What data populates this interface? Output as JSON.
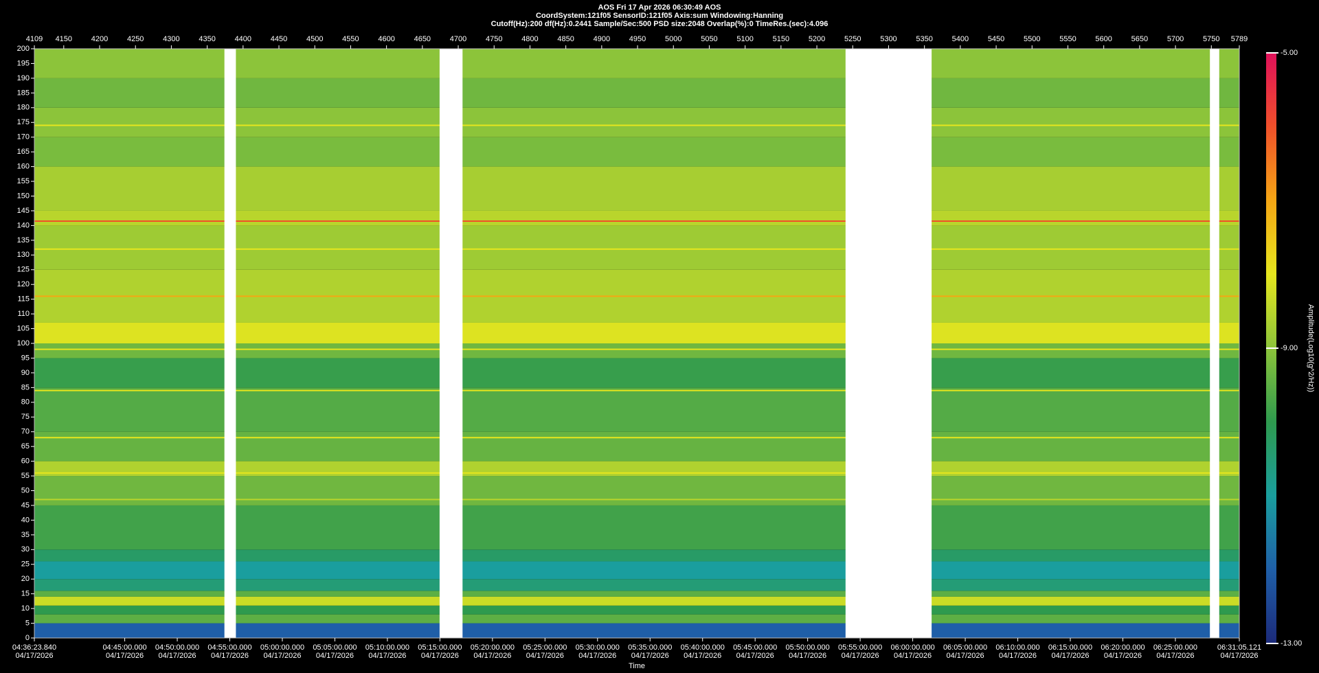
{
  "chart_data": {
    "type": "heatmap",
    "title": "AOS  Fri 17 Apr 2026 06:30:49  AOS",
    "subtitles": [
      "CoordSystem:121f05   SensorID:121f05   Axis:sum    Windowing:Hanning",
      "Cutoff(Hz):200     df(Hz):0.2441     Sample/Sec:500     PSD size:2048     Overlap(%):0     TimeRes.(sec):4.096"
    ],
    "x_label": "Time",
    "colorbar_label": "Amplitude(Log10(g^2/Hz))",
    "ylim": [
      0,
      200
    ],
    "yticks": [
      0,
      5,
      10,
      15,
      20,
      25,
      30,
      35,
      40,
      45,
      50,
      55,
      60,
      65,
      70,
      75,
      80,
      85,
      90,
      95,
      100,
      105,
      110,
      115,
      120,
      125,
      130,
      135,
      140,
      145,
      150,
      155,
      160,
      165,
      170,
      175,
      180,
      185,
      190,
      195,
      200
    ],
    "x2lim": [
      4109,
      5789
    ],
    "x2ticks": [
      4109,
      4150,
      4200,
      4250,
      4300,
      4350,
      4400,
      4450,
      4500,
      4550,
      4600,
      4650,
      4700,
      4750,
      4800,
      4850,
      4900,
      4950,
      5000,
      5050,
      5100,
      5150,
      5200,
      5250,
      5300,
      5350,
      5400,
      5450,
      5500,
      5550,
      5600,
      5650,
      5700,
      5750,
      5789
    ],
    "xlim": [
      "04:36:23.840",
      "06:31:05.121"
    ],
    "xticks": [
      {
        "time": "04:36:23.840",
        "date": "04/17/2026"
      },
      {
        "time": "04:45:00.000",
        "date": "04/17/2026"
      },
      {
        "time": "04:50:00.000",
        "date": "04/17/2026"
      },
      {
        "time": "04:55:00.000",
        "date": "04/17/2026"
      },
      {
        "time": "05:00:00.000",
        "date": "04/17/2026"
      },
      {
        "time": "05:05:00.000",
        "date": "04/17/2026"
      },
      {
        "time": "05:10:00.000",
        "date": "04/17/2026"
      },
      {
        "time": "05:15:00.000",
        "date": "04/17/2026"
      },
      {
        "time": "05:20:00.000",
        "date": "04/17/2026"
      },
      {
        "time": "05:25:00.000",
        "date": "04/17/2026"
      },
      {
        "time": "05:30:00.000",
        "date": "04/17/2026"
      },
      {
        "time": "05:35:00.000",
        "date": "04/17/2026"
      },
      {
        "time": "05:40:00.000",
        "date": "04/17/2026"
      },
      {
        "time": "05:45:00.000",
        "date": "04/17/2026"
      },
      {
        "time": "05:50:00.000",
        "date": "04/17/2026"
      },
      {
        "time": "05:55:00.000",
        "date": "04/17/2026"
      },
      {
        "time": "06:00:00.000",
        "date": "04/17/2026"
      },
      {
        "time": "06:05:00.000",
        "date": "04/17/2026"
      },
      {
        "time": "06:10:00.000",
        "date": "04/17/2026"
      },
      {
        "time": "06:15:00.000",
        "date": "04/17/2026"
      },
      {
        "time": "06:20:00.000",
        "date": "04/17/2026"
      },
      {
        "time": "06:25:00.000",
        "date": "04/17/2026"
      },
      {
        "time": "06:31:05.121",
        "date": "04/17/2026"
      }
    ],
    "clim": [
      -13,
      -5
    ],
    "cticks": [
      {
        "value": -5,
        "label": "-5.00"
      },
      {
        "value": -9,
        "label": "-9.00"
      },
      {
        "value": -13,
        "label": "-13.00"
      }
    ],
    "colormap": [
      "#1c2a7a",
      "#1f5fa8",
      "#1a9e9e",
      "#2e9a4e",
      "#8cc43a",
      "#e6e61e",
      "#f5a614",
      "#f0502a",
      "#e0105a"
    ],
    "bands": [
      {
        "from": 0,
        "to": 5,
        "value": -12
      },
      {
        "from": 5,
        "to": 8,
        "value": -9.5
      },
      {
        "from": 8,
        "to": 11,
        "value": -10
      },
      {
        "from": 11,
        "to": 14,
        "value": -8.3
      },
      {
        "from": 14,
        "to": 16,
        "value": -9.5
      },
      {
        "from": 16,
        "to": 20,
        "value": -10.5
      },
      {
        "from": 20,
        "to": 26,
        "value": -11
      },
      {
        "from": 26,
        "to": 30,
        "value": -10.3
      },
      {
        "from": 30,
        "to": 45,
        "value": -9.8
      },
      {
        "from": 45,
        "to": 55,
        "value": -9.3
      },
      {
        "from": 55,
        "to": 60,
        "value": -8.6
      },
      {
        "from": 60,
        "to": 70,
        "value": -9.4
      },
      {
        "from": 70,
        "to": 85,
        "value": -9.6
      },
      {
        "from": 85,
        "to": 95,
        "value": -9.9
      },
      {
        "from": 95,
        "to": 100,
        "value": -9.3
      },
      {
        "from": 100,
        "to": 107,
        "value": -8.1
      },
      {
        "from": 107,
        "to": 125,
        "value": -8.6
      },
      {
        "from": 125,
        "to": 140,
        "value": -8.8
      },
      {
        "from": 140,
        "to": 145,
        "value": -8.5
      },
      {
        "from": 145,
        "to": 160,
        "value": -8.7
      },
      {
        "from": 160,
        "to": 170,
        "value": -9.2
      },
      {
        "from": 170,
        "to": 180,
        "value": -9
      },
      {
        "from": 180,
        "to": 190,
        "value": -9.3
      },
      {
        "from": 190,
        "to": 200,
        "value": -9
      }
    ],
    "tones": [
      {
        "freq": 141.5,
        "value": -6
      },
      {
        "freq": 174,
        "value": -8
      },
      {
        "freq": 116,
        "value": -7
      },
      {
        "freq": 132,
        "value": -8
      },
      {
        "freq": 98,
        "value": -8
      },
      {
        "freq": 84,
        "value": -8
      },
      {
        "freq": 68,
        "value": -8
      },
      {
        "freq": 56,
        "value": -8
      },
      {
        "freq": 47,
        "value": -8.5
      }
    ],
    "gaps": [
      {
        "from": 4374,
        "to": 4390
      },
      {
        "from": 4674,
        "to": 4706
      },
      {
        "from": 5240,
        "to": 5360
      },
      {
        "from": 5748,
        "to": 5761
      }
    ]
  }
}
